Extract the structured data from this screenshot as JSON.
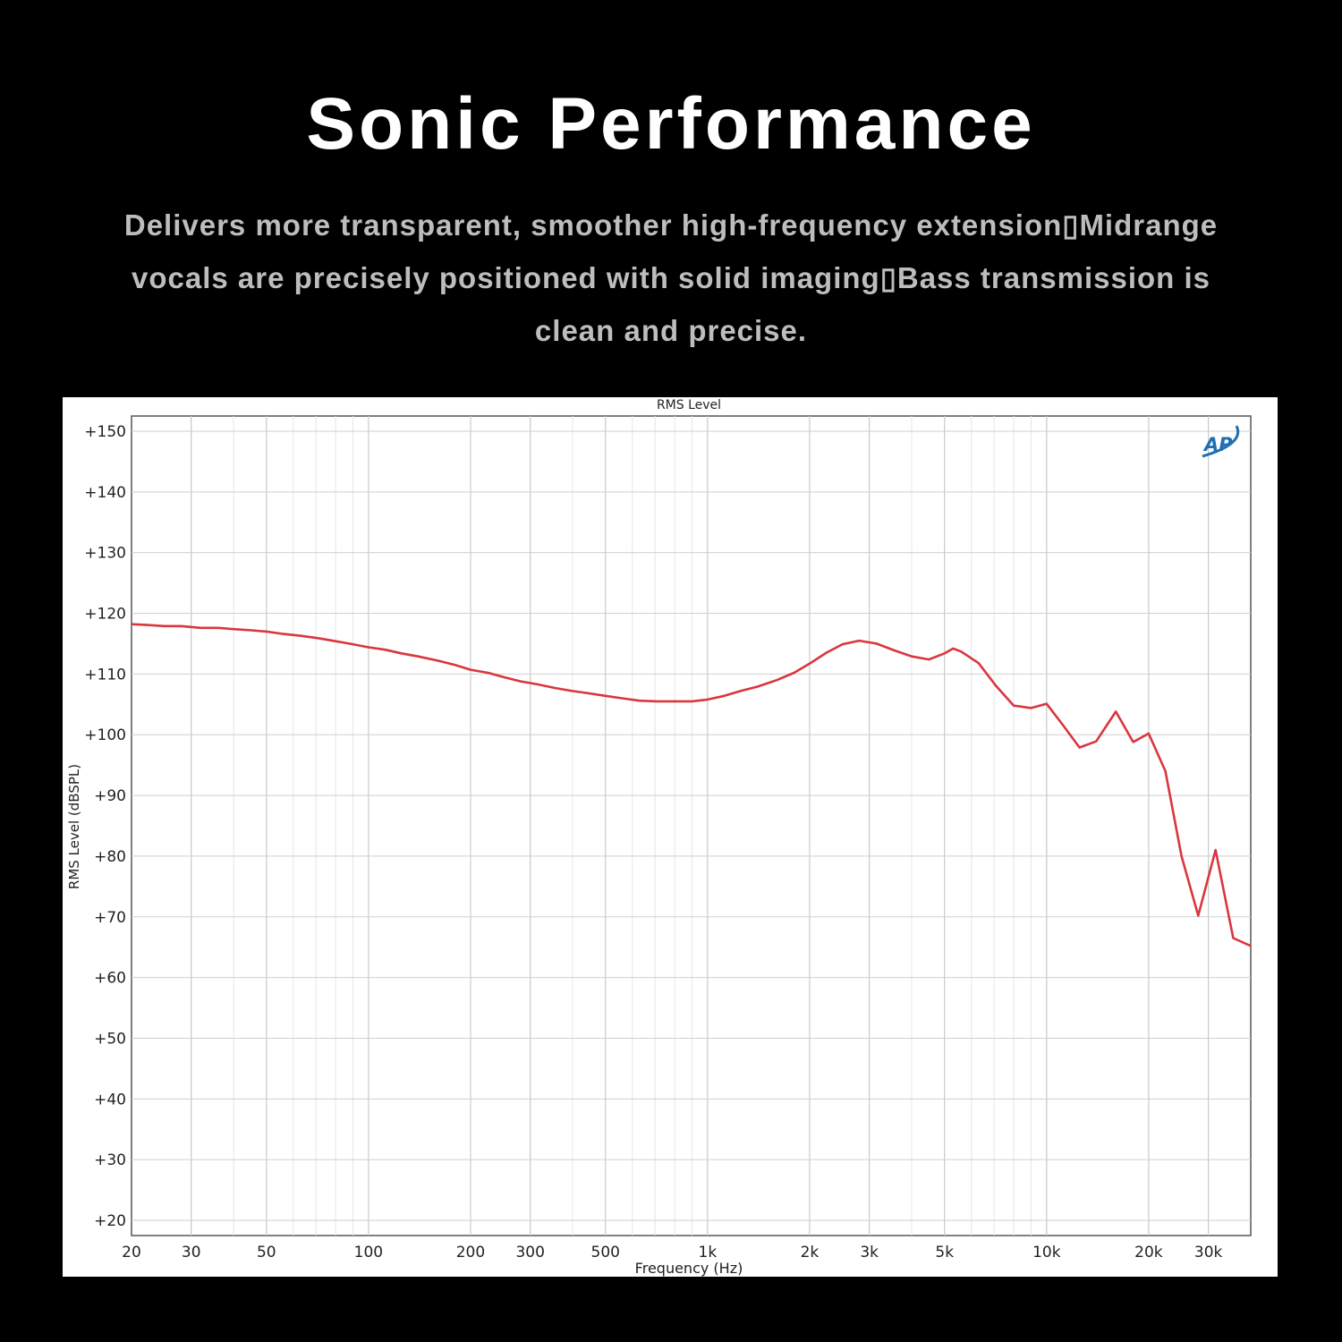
{
  "header": {
    "title": "Sonic Performance",
    "description": "Delivers more transparent, smoother high-frequency extension▯Midrange vocals are precisely positioned with solid imaging▯Bass transmission is clean and precise."
  },
  "chart_data": {
    "type": "line",
    "title": "RMS Level",
    "xlabel": "Frequency (Hz)",
    "ylabel": "RMS Level (dBSPL)",
    "x_scale": "log",
    "xlim": [
      20,
      40000
    ],
    "ylim": [
      17.5,
      152.5
    ],
    "grid": true,
    "x_ticks": [
      {
        "value": 20,
        "label": "20"
      },
      {
        "value": 30,
        "label": "30"
      },
      {
        "value": 50,
        "label": "50"
      },
      {
        "value": 100,
        "label": "100"
      },
      {
        "value": 200,
        "label": "200"
      },
      {
        "value": 300,
        "label": "300"
      },
      {
        "value": 500,
        "label": "500"
      },
      {
        "value": 1000,
        "label": "1k"
      },
      {
        "value": 2000,
        "label": "2k"
      },
      {
        "value": 3000,
        "label": "3k"
      },
      {
        "value": 5000,
        "label": "5k"
      },
      {
        "value": 10000,
        "label": "10k"
      },
      {
        "value": 20000,
        "label": "20k"
      },
      {
        "value": 30000,
        "label": "30k"
      }
    ],
    "y_ticks": [
      {
        "value": 150,
        "label": "+150"
      },
      {
        "value": 140,
        "label": "+140"
      },
      {
        "value": 130,
        "label": "+130"
      },
      {
        "value": 120,
        "label": "+120"
      },
      {
        "value": 110,
        "label": "+110"
      },
      {
        "value": 100,
        "label": "+100"
      },
      {
        "value": 90,
        "label": "+90"
      },
      {
        "value": 80,
        "label": "+80"
      },
      {
        "value": 70,
        "label": "+70"
      },
      {
        "value": 60,
        "label": "+60"
      },
      {
        "value": 50,
        "label": "+50"
      },
      {
        "value": 40,
        "label": "+40"
      },
      {
        "value": 30,
        "label": "+30"
      },
      {
        "value": 20,
        "label": "+20"
      }
    ],
    "logo": "AP",
    "series": [
      {
        "color": "#d9363e",
        "points": [
          [
            20,
            118.2
          ],
          [
            22,
            118.1
          ],
          [
            25,
            117.9
          ],
          [
            28,
            117.9
          ],
          [
            32,
            117.6
          ],
          [
            36,
            117.6
          ],
          [
            40,
            117.4
          ],
          [
            45,
            117.2
          ],
          [
            50,
            117.0
          ],
          [
            56,
            116.6
          ],
          [
            63,
            116.3
          ],
          [
            71,
            115.9
          ],
          [
            80,
            115.4
          ],
          [
            90,
            114.9
          ],
          [
            100,
            114.4
          ],
          [
            112,
            114.0
          ],
          [
            125,
            113.4
          ],
          [
            140,
            112.9
          ],
          [
            160,
            112.2
          ],
          [
            180,
            111.5
          ],
          [
            200,
            110.7
          ],
          [
            225,
            110.2
          ],
          [
            250,
            109.5
          ],
          [
            280,
            108.8
          ],
          [
            315,
            108.3
          ],
          [
            355,
            107.7
          ],
          [
            400,
            107.2
          ],
          [
            450,
            106.8
          ],
          [
            500,
            106.4
          ],
          [
            560,
            106.0
          ],
          [
            630,
            105.6
          ],
          [
            710,
            105.5
          ],
          [
            800,
            105.5
          ],
          [
            900,
            105.5
          ],
          [
            1000,
            105.8
          ],
          [
            1120,
            106.4
          ],
          [
            1250,
            107.2
          ],
          [
            1400,
            107.9
          ],
          [
            1600,
            109.0
          ],
          [
            1800,
            110.2
          ],
          [
            2000,
            111.7
          ],
          [
            2240,
            113.5
          ],
          [
            2500,
            114.9
          ],
          [
            2800,
            115.5
          ],
          [
            3150,
            115.0
          ],
          [
            3550,
            113.9
          ],
          [
            4000,
            112.9
          ],
          [
            4500,
            112.4
          ],
          [
            5000,
            113.4
          ],
          [
            5300,
            114.2
          ],
          [
            5600,
            113.7
          ],
          [
            6300,
            111.8
          ],
          [
            7100,
            108.0
          ],
          [
            8000,
            104.8
          ],
          [
            9000,
            104.4
          ],
          [
            10000,
            105.1
          ],
          [
            11200,
            101.5
          ],
          [
            12500,
            97.9
          ],
          [
            14000,
            98.9
          ],
          [
            16000,
            103.8
          ],
          [
            18000,
            98.8
          ],
          [
            20000,
            100.2
          ],
          [
            22400,
            94.0
          ],
          [
            25000,
            80.0
          ],
          [
            28000,
            70.2
          ],
          [
            31500,
            81.0
          ],
          [
            35500,
            66.5
          ],
          [
            40000,
            65.2
          ]
        ]
      }
    ]
  }
}
